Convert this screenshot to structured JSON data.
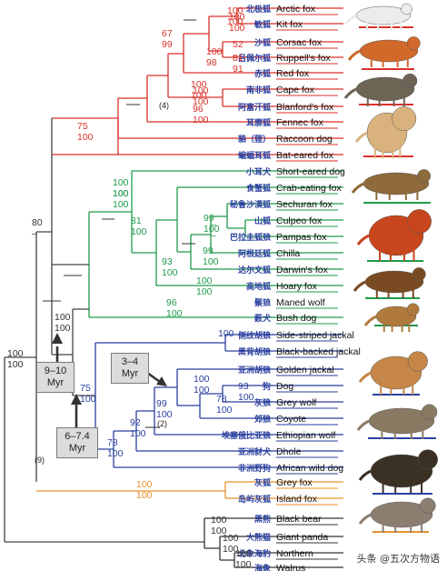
{
  "species": [
    {
      "zh": "北极狐",
      "en": "Arctic fox",
      "color": "#d9312a"
    },
    {
      "zh": "敏狐",
      "en": "Kit fox",
      "color": "#d9312a"
    },
    {
      "zh": "沙狐",
      "en": "Corsac fox",
      "color": "#d9312a"
    },
    {
      "zh": "吕佩尔狐",
      "en": "Ruppell's fox",
      "color": "#d9312a"
    },
    {
      "zh": "赤狐",
      "en": "Red fox",
      "color": "#d9312a"
    },
    {
      "zh": "南非狐",
      "en": "Cape fox",
      "color": "#d9312a"
    },
    {
      "zh": "阿富汗狐",
      "en": "Blanford's fox",
      "color": "#d9312a"
    },
    {
      "zh": "耳廓狐",
      "en": "Fennec fox",
      "color": "#d9312a"
    },
    {
      "zh": "貉（狸）",
      "en": "Raccoon dog",
      "color": "#d9312a"
    },
    {
      "zh": "蝙蝠耳狐",
      "en": "Bat-eared fox",
      "color": "#d9312a"
    },
    {
      "zh": "小耳犬",
      "en": "Short-eared dog",
      "color": "#1f9a4b"
    },
    {
      "zh": "食蟹狐",
      "en": "Crab-eating fox",
      "color": "#1f9a4b"
    },
    {
      "zh": "秘鲁沙漠狐",
      "en": "Sechuran fox",
      "color": "#1f9a4b"
    },
    {
      "zh": "山狐",
      "en": "Culpeo fox",
      "color": "#1f9a4b"
    },
    {
      "zh": "巴拉圭狐狼",
      "en": "Pampas fox",
      "color": "#1f9a4b"
    },
    {
      "zh": "阿根廷狐",
      "en": "Chilla",
      "color": "#1f9a4b"
    },
    {
      "zh": "达尔文狐",
      "en": "Darwin's fox",
      "color": "#1f9a4b"
    },
    {
      "zh": "高地狐",
      "en": "Hoary fox",
      "color": "#1f9a4b"
    },
    {
      "zh": "鬃狼",
      "en": "Maned wolf",
      "color": "#1f9a4b"
    },
    {
      "zh": "薮犬",
      "en": "Bush dog",
      "color": "#1f9a4b"
    },
    {
      "zh": "侧纹胡狼",
      "en": "Side-striped jackal",
      "color": "#2a3f9e"
    },
    {
      "zh": "黑背胡狼",
      "en": "Black-backed jackal",
      "color": "#2a3f9e"
    },
    {
      "zh": "亚洲胡狼",
      "en": "Golden jackal",
      "color": "#2a3f9e"
    },
    {
      "zh": "狗",
      "en": "Dog",
      "color": "#2a3f9e"
    },
    {
      "zh": "灰狼",
      "en": "Grey wolf",
      "color": "#2a3f9e"
    },
    {
      "zh": "郊狼",
      "en": "Coyote",
      "color": "#2a3f9e"
    },
    {
      "zh": "埃塞俄比亚狼",
      "en": "Ethiopian wolf",
      "color": "#2a3f9e"
    },
    {
      "zh": "亚洲豺犬",
      "en": "Dhole",
      "color": "#2a3f9e"
    },
    {
      "zh": "非洲野狗",
      "en": "African wild dog",
      "color": "#2a3f9e"
    },
    {
      "zh": "灰狐",
      "en": "Grey fox",
      "color": "#e8922a"
    },
    {
      "zh": "岛屿灰狐",
      "en": "Island fox",
      "color": "#e8922a"
    },
    {
      "zh": "黑熊",
      "en": "Black bear",
      "color": "#333333"
    },
    {
      "zh": "大熊猫",
      "en": "Giant panda",
      "color": "#333333"
    },
    {
      "zh": "北象海豹",
      "en": "Northern",
      "color": "#333333"
    },
    {
      "zh": "海象",
      "en": "Walrus",
      "color": "#333333"
    }
  ],
  "support_values": [
    {
      "top": "100",
      "bottom": "100",
      "color": "#d9312a"
    },
    {
      "top": "100",
      "bottom": "100",
      "color": "#d9312a"
    },
    {
      "top": "52",
      "bottom": "–",
      "color": "#d9312a"
    },
    {
      "top": "81",
      "bottom": "91",
      "color": "#d9312a"
    },
    {
      "top": "100",
      "bottom": "98",
      "color": "#d9312a"
    },
    {
      "top": "67",
      "bottom": "99",
      "color": "#d9312a"
    },
    {
      "top": "100",
      "bottom": "100",
      "color": "#d9312a"
    },
    {
      "top": "100",
      "bottom": "100",
      "color": "#d9312a"
    },
    {
      "top": "96",
      "bottom": "100",
      "color": "#d9312a"
    },
    {
      "top": "75",
      "bottom": "100",
      "color": "#d9312a"
    },
    {
      "top": "100",
      "bottom": "100",
      "color": "#1f9a4b"
    },
    {
      "top": "100",
      "bottom": "100",
      "color": "#1f9a4b"
    },
    {
      "top": "81",
      "bottom": "100",
      "color": "#1f9a4b"
    },
    {
      "top": "–",
      "bottom": "–",
      "color": "#1f9a4b"
    },
    {
      "top": "99",
      "bottom": "100",
      "color": "#1f9a4b"
    },
    {
      "top": "99",
      "bottom": "100",
      "color": "#1f9a4b"
    },
    {
      "top": "93",
      "bottom": "100",
      "color": "#1f9a4b"
    },
    {
      "top": "100",
      "bottom": "100",
      "color": "#1f9a4b"
    },
    {
      "top": "96",
      "bottom": "100",
      "color": "#1f9a4b"
    },
    {
      "top": "100",
      "bottom": "",
      "color": "#2a3f9e"
    },
    {
      "top": "93",
      "bottom": "100",
      "color": "#2a3f9e"
    },
    {
      "top": "78",
      "bottom": "100",
      "color": "#2a3f9e"
    },
    {
      "top": "100",
      "bottom": "100",
      "color": "#2a3f9e"
    },
    {
      "top": "99",
      "bottom": "100",
      "color": "#2a3f9e"
    },
    {
      "top": "92",
      "bottom": "100",
      "color": "#2a3f9e"
    },
    {
      "top": "78",
      "bottom": "100",
      "color": "#2a3f9e"
    },
    {
      "top": "75",
      "bottom": "100",
      "color": "#2a3f9e"
    },
    {
      "top": "100",
      "bottom": "100",
      "color": "#e8922a"
    },
    {
      "top": "100",
      "bottom": "100",
      "color": "#333333"
    },
    {
      "top": "100",
      "bottom": "100",
      "color": "#333333"
    },
    {
      "top": "100",
      "bottom": "100",
      "color": "#333333"
    },
    {
      "top": "80",
      "bottom": "–",
      "color": "#333333"
    },
    {
      "top": "100",
      "bottom": "100",
      "color": "#333333"
    },
    {
      "top": "100",
      "bottom": "100",
      "color": "#333333"
    }
  ],
  "annotations": {
    "red_clade_count": "(4)",
    "wolf_clade_count": "(2)",
    "grey_fox_count": "(9)"
  },
  "divergence_boxes": [
    {
      "line1": "9–10",
      "line2": "Myr"
    },
    {
      "line1": "6–7.4",
      "line2": "Myr"
    },
    {
      "line1": "3–4",
      "line2": "Myr"
    }
  ],
  "animal_illustrations": [
    {
      "name": "arctic-fox",
      "color": "#ececec"
    },
    {
      "name": "red-fox",
      "color": "#d0692a"
    },
    {
      "name": "raccoon-dog",
      "color": "#6e6456"
    },
    {
      "name": "fennec-fox",
      "color": "#d9b27d"
    },
    {
      "name": "crab-eating-fox",
      "color": "#8f6a3b"
    },
    {
      "name": "maned-wolf",
      "color": "#c7461d"
    },
    {
      "name": "bush-dog",
      "color": "#7a4a22"
    },
    {
      "name": "black-backed-jackal",
      "color": "#b07a3d"
    },
    {
      "name": "dog",
      "color": "#c58648"
    },
    {
      "name": "grey-wolf",
      "color": "#8a7a64"
    },
    {
      "name": "african-wild-dog",
      "color": "#3b3024"
    },
    {
      "name": "grey-fox",
      "color": "#8c7d71"
    }
  ],
  "watermark": "头条 @五次方物语"
}
